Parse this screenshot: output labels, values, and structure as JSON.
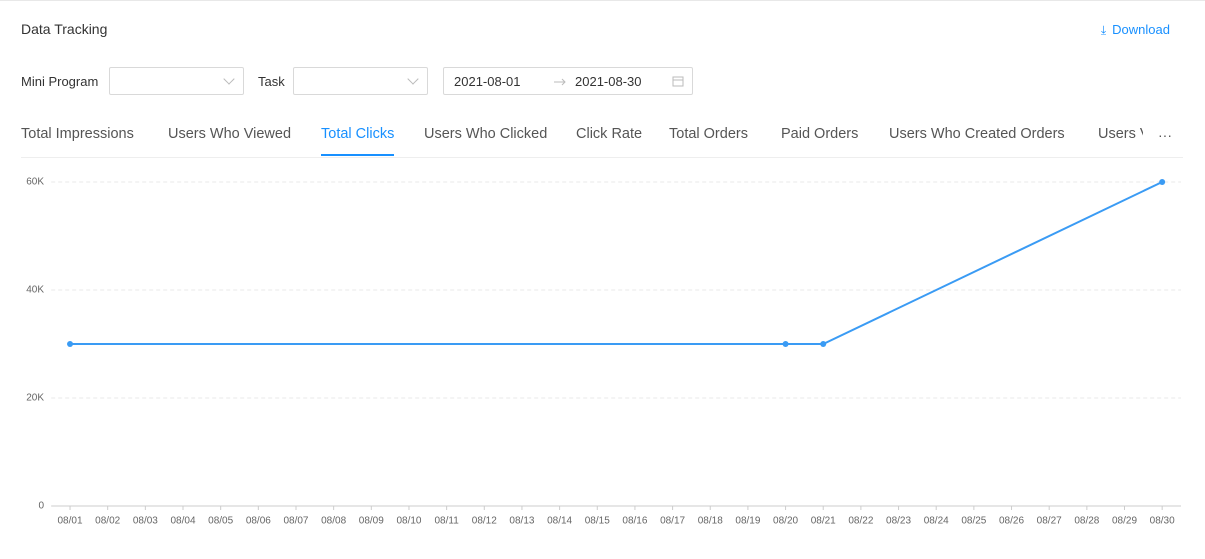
{
  "header": {
    "title": "Data Tracking",
    "download": "Download"
  },
  "filters": {
    "mini_program_label": "Mini Program",
    "task_label": "Task",
    "start_date": "2021-08-01",
    "end_date": "2021-08-30"
  },
  "tabs": {
    "items": [
      "Total Impressions",
      "Users Who Viewed",
      "Total Clicks",
      "Users Who Clicked",
      "Click Rate",
      "Total Orders",
      "Paid Orders",
      "Users Who Created Orders",
      "Users V"
    ],
    "active": 2,
    "more": "···"
  },
  "chart_data": {
    "type": "line",
    "color": "#3a9bf4",
    "categories": [
      "08/01",
      "08/02",
      "08/03",
      "08/04",
      "08/05",
      "08/06",
      "08/07",
      "08/08",
      "08/09",
      "08/10",
      "08/11",
      "08/12",
      "08/13",
      "08/14",
      "08/15",
      "08/16",
      "08/17",
      "08/18",
      "08/19",
      "08/20",
      "08/21",
      "08/22",
      "08/23",
      "08/24",
      "08/25",
      "08/26",
      "08/27",
      "08/28",
      "08/29",
      "08/30"
    ],
    "x": [
      "08/01",
      "08/20",
      "08/21",
      "08/30"
    ],
    "values": [
      30000,
      30000,
      30000,
      60000
    ],
    "ylim": [
      0,
      60000
    ],
    "yticks": [
      0,
      {
        "value": 20000,
        "label": "20K"
      },
      {
        "value": 40000,
        "label": "40K"
      },
      {
        "value": 60000,
        "label": "60K"
      }
    ],
    "grid": true
  }
}
